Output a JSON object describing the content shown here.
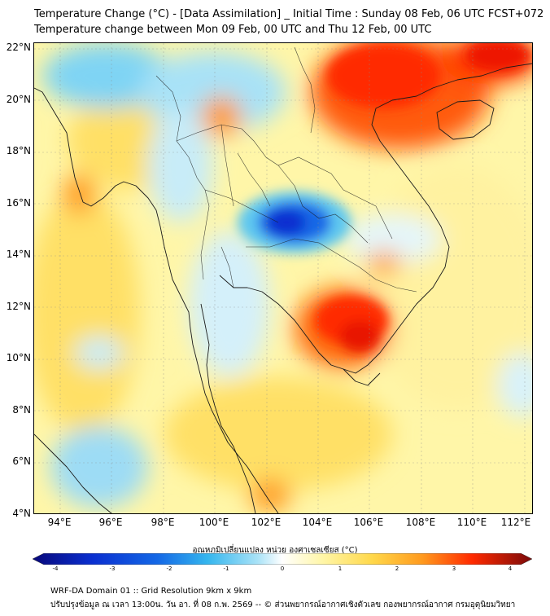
{
  "title_line1": "Temperature Change (°C) - [Data Assimilation] _ Initial Time : Sunday 08 Feb, 06 UTC FCST+072",
  "title_line2": "Temperature change between Mon 09 Feb, 00 UTC and Thu 12 Feb, 00 UTC",
  "lat_labels": [
    "22°N",
    "20°N",
    "18°N",
    "16°N",
    "14°N",
    "12°N",
    "10°N",
    "8°N",
    "6°N",
    "4°N"
  ],
  "lon_labels": [
    "94°E",
    "96°E",
    "98°E",
    "100°E",
    "102°E",
    "104°E",
    "106°E",
    "108°E",
    "110°E",
    "112°E"
  ],
  "colorbar": {
    "title": "อุณหภูมิเปลี่ยนแปลง หน่วย องศาเซลเซียส (°C)",
    "ticks": [
      "-4",
      "-3",
      "-2",
      "-1",
      "0",
      "1",
      "2",
      "3",
      "4"
    ],
    "min": -4,
    "max": 4
  },
  "footer_line1": "WRF-DA Domain 01 :: Grid Resolution 9km x 9km",
  "footer_line2": "ปรับปรุงข้อมูล ณ เวลา 13:00น. วัน อา. ที่ 08 ก.พ. 2569 -- © ส่วนพยากรณ์อากาศเชิงตัวเลข กองพยากรณ์อากาศ กรมอุตุนิยมวิทยา",
  "colors": {
    "warm_light": "#fff6a8",
    "warm": "#ffd84a",
    "orange": "#ff9a1e",
    "red": "#ff2a00",
    "cool_light": "#cdeefa",
    "cool": "#5fc8f0",
    "blue": "#1468e6",
    "deep_blue": "#0a2fd0"
  }
}
